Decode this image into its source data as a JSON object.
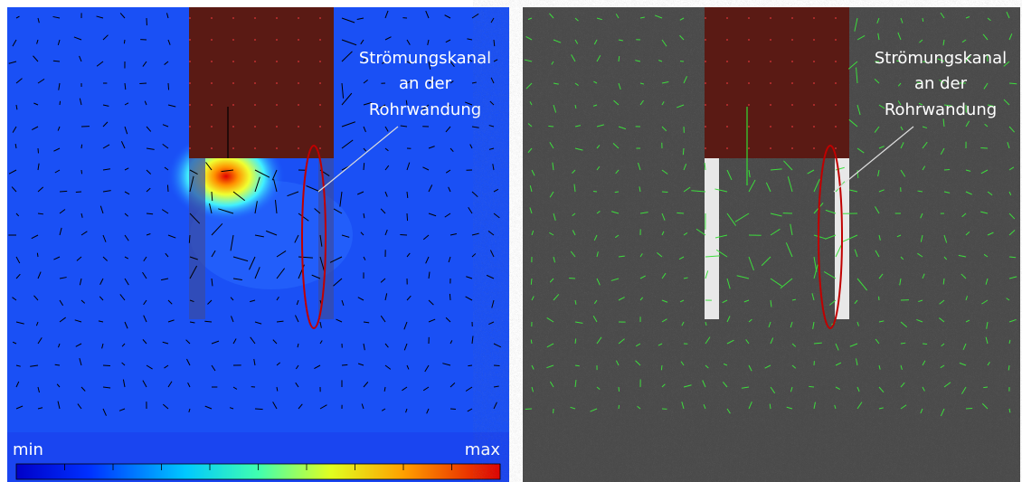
{
  "panels": [
    {
      "annotation": [
        "Strömungskanal",
        "an der",
        "Rohrwandung"
      ],
      "colorbar": {
        "min_label": "min",
        "max_label": "max"
      }
    },
    {
      "annotation": [
        "Strömungskanal",
        "an der",
        "Rohrwandung"
      ]
    }
  ]
}
